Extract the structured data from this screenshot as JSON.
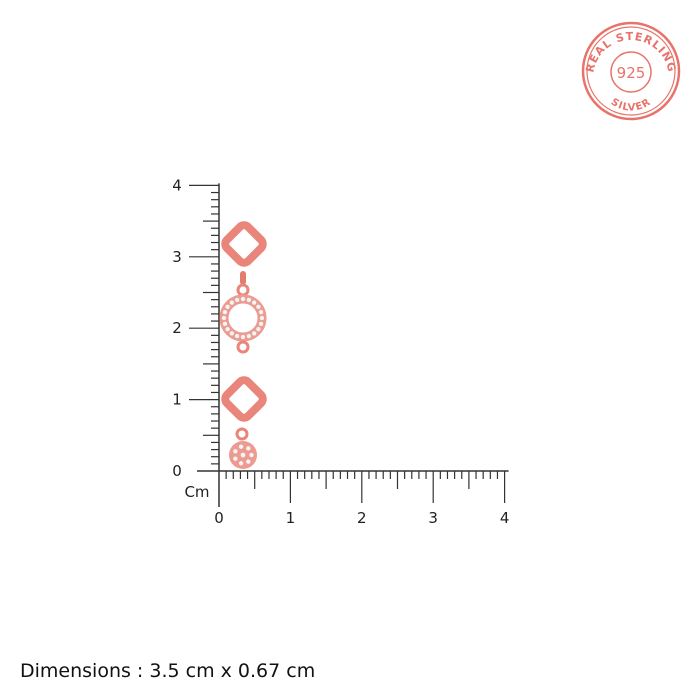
{
  "seal": {
    "top_text": "REAL STERLING",
    "center_text": "925",
    "bottom_text": "SILVER",
    "color": "#e8736a"
  },
  "ruler": {
    "unit_label": "Cm",
    "x_ticks": [
      "0",
      "1",
      "2",
      "3",
      "4"
    ],
    "y_ticks": [
      "0",
      "1",
      "2",
      "3",
      "4"
    ],
    "max_cm": 4,
    "minor_step_cm": 0.1,
    "color": "#333333"
  },
  "product": {
    "metal_color": "#e9857a",
    "stone_color": "#f7f2f1"
  },
  "dimensions_text": "Dimensions : 3.5 cm x 0.67 cm"
}
